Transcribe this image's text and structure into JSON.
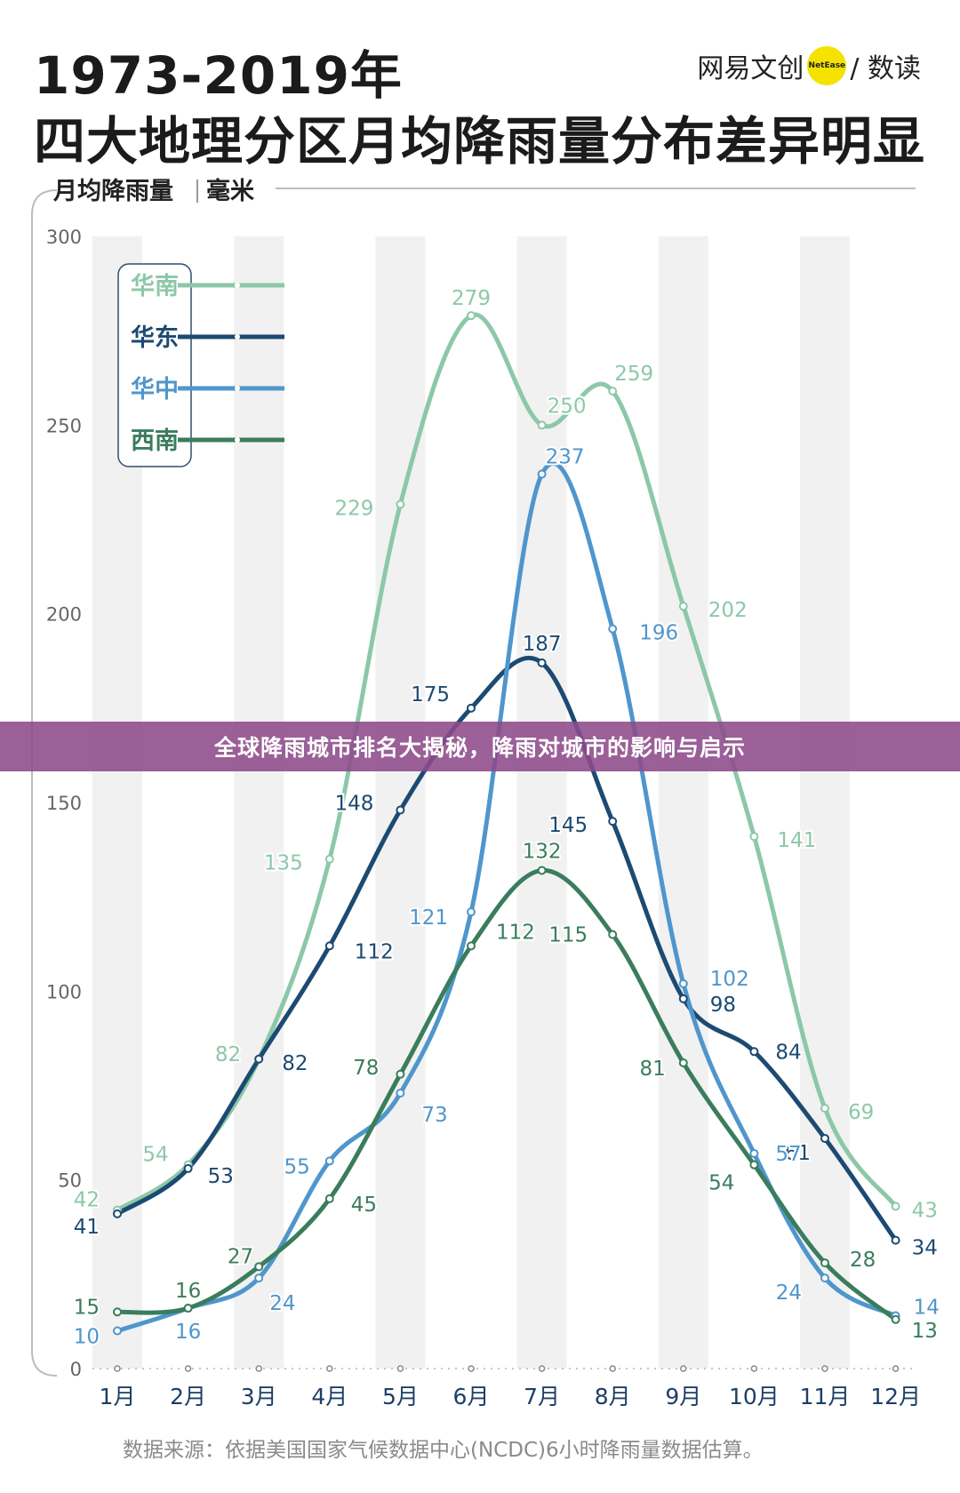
{
  "header": {
    "title_line1": "1973-2019年",
    "title_line2": "四大地理分区月均降雨量分布差异明显",
    "logo_left": "网易文创",
    "logo_badge": "NetEase",
    "logo_right": "/ 数读"
  },
  "banner": {
    "text": "全球降雨城市排名大揭秘，降雨对城市的影响与启示"
  },
  "source": "数据来源：依据美国国家气候数据中心(NCDC)6小时降雨量数据估算。",
  "chart_data": {
    "type": "line",
    "title": "1973-2019年 四大地理分区月均降雨量分布差异明显",
    "ylabel": "月均降雨量",
    "yunit": "毫米",
    "xlabel": "",
    "ylim": [
      0,
      300
    ],
    "yticks": [
      0,
      50,
      100,
      150,
      200,
      250,
      300
    ],
    "grid": "alternating vertical bands",
    "legend_position": "top-left",
    "categories": [
      "1月",
      "2月",
      "3月",
      "4月",
      "5月",
      "6月",
      "7月",
      "8月",
      "9月",
      "10月",
      "11月",
      "12月"
    ],
    "series": [
      {
        "name": "华南",
        "color": "#8cc8a8",
        "values": [
          42,
          54,
          82,
          135,
          229,
          279,
          250,
          259,
          202,
          141,
          69,
          43
        ]
      },
      {
        "name": "华东",
        "color": "#1c4a72",
        "values": [
          41,
          53,
          82,
          112,
          148,
          175,
          187,
          145,
          98,
          84,
          61,
          34
        ]
      },
      {
        "name": "华中",
        "color": "#4f96cc",
        "values": [
          10,
          16,
          24,
          55,
          73,
          121,
          237,
          196,
          102,
          57,
          24,
          14
        ]
      },
      {
        "name": "西南",
        "color": "#3a7d5c",
        "values": [
          15,
          16,
          27,
          45,
          78,
          112,
          132,
          115,
          81,
          54,
          28,
          13
        ]
      }
    ]
  }
}
